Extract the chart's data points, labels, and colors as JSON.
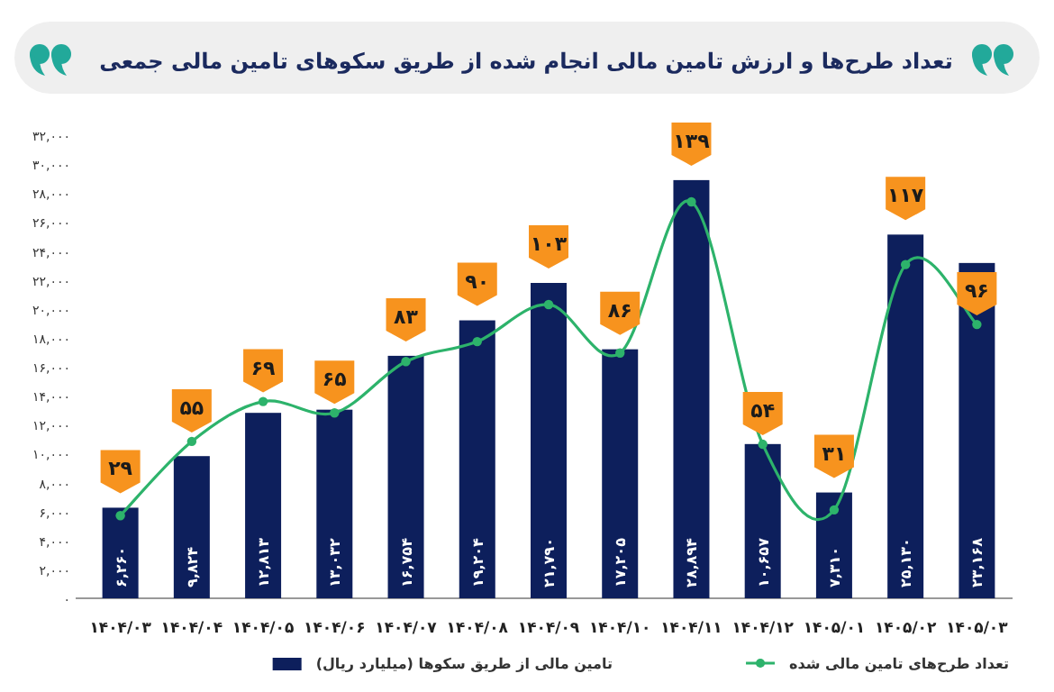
{
  "chart_data": {
    "type": "bar",
    "title": "تعداد طرح‌ها و ارزش تامین مالی انجام شده از طریق سکوهای تامین مالی جمعی",
    "categories": [
      "۱۴۰۴/۰۳",
      "۱۴۰۴/۰۴",
      "۱۴۰۴/۰۵",
      "۱۴۰۴/۰۶",
      "۱۴۰۴/۰۷",
      "۱۴۰۴/۰۸",
      "۱۴۰۴/۰۹",
      "۱۴۰۴/۱۰",
      "۱۴۰۴/۱۱",
      "۱۴۰۴/۱۲",
      "۱۴۰۵/۰۱",
      "۱۴۰۵/۰۲",
      "۱۴۰۵/۰۳"
    ],
    "series": [
      {
        "name": "تامین مالی از طریق سکوها (میلیارد ریال)",
        "color": "#0d1f5c",
        "values": [
          6260,
          9824,
          12813,
          13032,
          16754,
          19204,
          21790,
          17205,
          28894,
          10657,
          7310,
          25130,
          23168
        ],
        "value_labels": [
          "۶,۲۶۰",
          "۹,۸۲۴",
          "۱۲,۸۱۳",
          "۱۳,۰۳۲",
          "۱۶,۷۵۴",
          "۱۹,۲۰۴",
          "۲۱,۷۹۰",
          "۱۷,۲۰۵",
          "۲۸,۸۹۴",
          "۱۰,۶۵۷",
          "۷,۳۱۰",
          "۲۵,۱۳۰",
          "۲۳,۱۶۸"
        ]
      },
      {
        "name": "تعداد طرح‌های تامین مالی شده",
        "type": "line",
        "axis": "y2",
        "color": "#2db36b",
        "values": [
          29,
          55,
          69,
          65,
          83,
          90,
          103,
          86,
          139,
          54,
          31,
          117,
          96
        ],
        "value_labels": [
          "۲۹",
          "۵۵",
          "۶۹",
          "۶۵",
          "۸۳",
          "۹۰",
          "۱۰۳",
          "۸۶",
          "۱۳۹",
          "۵۴",
          "۳۱",
          "۱۱۷",
          "۹۶"
        ]
      }
    ],
    "ylim": [
      0,
      32000
    ],
    "yticks": [
      {
        "value": 0,
        "label": "۰"
      },
      {
        "value": 2000,
        "label": "۲,۰۰۰"
      },
      {
        "value": 4000,
        "label": "۴,۰۰۰"
      },
      {
        "value": 6000,
        "label": "۶,۰۰۰"
      },
      {
        "value": 8000,
        "label": "۸,۰۰۰"
      },
      {
        "value": 10000,
        "label": "۱۰,۰۰۰"
      },
      {
        "value": 12000,
        "label": "۱۲,۰۰۰"
      },
      {
        "value": 14000,
        "label": "۱۴,۰۰۰"
      },
      {
        "value": 16000,
        "label": "۱۶,۰۰۰"
      },
      {
        "value": 18000,
        "label": "۱۸,۰۰۰"
      },
      {
        "value": 20000,
        "label": "۲۰,۰۰۰"
      },
      {
        "value": 22000,
        "label": "۲۲,۰۰۰"
      },
      {
        "value": 24000,
        "label": "۲۴,۰۰۰"
      },
      {
        "value": 26000,
        "label": "۲۶,۰۰۰"
      },
      {
        "value": 28000,
        "label": "۲۸,۰۰۰"
      },
      {
        "value": 30000,
        "label": "۳۰,۰۰۰"
      },
      {
        "value": 32000,
        "label": "۳۲,۰۰۰"
      }
    ],
    "marker": "circle",
    "legend": "bottom"
  }
}
